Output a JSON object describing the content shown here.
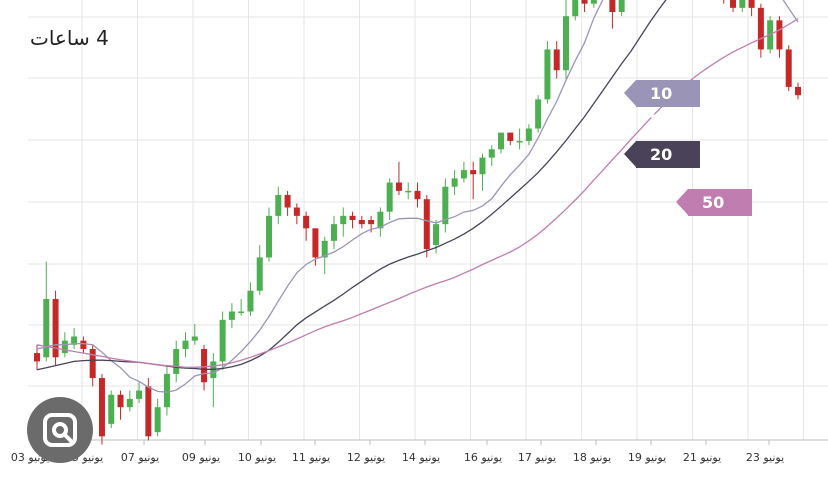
{
  "title": "4 ساعات",
  "chart_data": {
    "type": "candlestick",
    "x_tick_labels": [
      {
        "day": "03",
        "month": "يونيو"
      },
      {
        "day": "05",
        "month": "يونيو"
      },
      {
        "day": "07",
        "month": "يونيو"
      },
      {
        "day": "09",
        "month": "يونيو"
      },
      {
        "day": "10",
        "month": "يونيو"
      },
      {
        "day": "11",
        "month": "يونيو"
      },
      {
        "day": "12",
        "month": "يونيو"
      },
      {
        "day": "14",
        "month": "يونيو"
      },
      {
        "day": "16",
        "month": "يونيو"
      },
      {
        "day": "17",
        "month": "يونيو"
      },
      {
        "day": "18",
        "month": "يونيو"
      },
      {
        "day": "19",
        "month": "يونيو"
      },
      {
        "day": "21",
        "month": "يونيو"
      },
      {
        "day": "23",
        "month": "يونيو"
      }
    ],
    "price_range": [
      0,
      100
    ],
    "grid": true,
    "up_color": "#4caf50",
    "down_color": "#c62828",
    "candles": [
      [
        18,
        16,
        20,
        14
      ],
      [
        17,
        31,
        40,
        16
      ],
      [
        31,
        17,
        33,
        15
      ],
      [
        18,
        21,
        23,
        17
      ],
      [
        20,
        22,
        24,
        19
      ],
      [
        21,
        19,
        22,
        18
      ],
      [
        19,
        12,
        20,
        10
      ],
      [
        12,
        -2,
        13,
        -4
      ],
      [
        1,
        8,
        9,
        0
      ],
      [
        8,
        5,
        9,
        2
      ],
      [
        5,
        7,
        9,
        4
      ],
      [
        7,
        9,
        11,
        6
      ],
      [
        10,
        -2,
        12,
        -3
      ],
      [
        -1,
        5,
        7,
        -2
      ],
      [
        5,
        13,
        15,
        3
      ],
      [
        13,
        19,
        21,
        11
      ],
      [
        19,
        21,
        23,
        17
      ],
      [
        21,
        22,
        25,
        20
      ],
      [
        19,
        11,
        20,
        9
      ],
      [
        12,
        16,
        18,
        5
      ],
      [
        16,
        26,
        28,
        14
      ],
      [
        26,
        28,
        30,
        24
      ],
      [
        28,
        28,
        31,
        27
      ],
      [
        28,
        33,
        35,
        27
      ],
      [
        33,
        41,
        44,
        32
      ],
      [
        41,
        51,
        53,
        40
      ],
      [
        51,
        56,
        58,
        49
      ],
      [
        56,
        53,
        57,
        51
      ],
      [
        53,
        51,
        54,
        49
      ],
      [
        51,
        48,
        52,
        45
      ],
      [
        48,
        41,
        48,
        39
      ],
      [
        41,
        45,
        46,
        37
      ],
      [
        45,
        49,
        51,
        43
      ],
      [
        49,
        51,
        53,
        46
      ],
      [
        51,
        50,
        52,
        48
      ],
      [
        50,
        49,
        51,
        48
      ],
      [
        50,
        49,
        51,
        47
      ],
      [
        48,
        52,
        53,
        46
      ],
      [
        52,
        59,
        60,
        50
      ],
      [
        59,
        57,
        64,
        56
      ],
      [
        57,
        57,
        59,
        55
      ],
      [
        57,
        55,
        59,
        53
      ],
      [
        55,
        43,
        56,
        41
      ],
      [
        44,
        49,
        50,
        42
      ],
      [
        49,
        58,
        60,
        47
      ],
      [
        58,
        60,
        62,
        56
      ],
      [
        60,
        62,
        64,
        59
      ],
      [
        62,
        61,
        64,
        55
      ],
      [
        61,
        65,
        66,
        57
      ],
      [
        65,
        67,
        68,
        63
      ],
      [
        67,
        71,
        71,
        66
      ],
      [
        71,
        69,
        71,
        68
      ],
      [
        69,
        69,
        72,
        67
      ],
      [
        69,
        72,
        73,
        68
      ],
      [
        72,
        79,
        80,
        71
      ],
      [
        79,
        91,
        93,
        78
      ],
      [
        91,
        86,
        93,
        84
      ],
      [
        86,
        99,
        103,
        84
      ],
      [
        99,
        103,
        104,
        98
      ],
      [
        103,
        102,
        104,
        100
      ],
      [
        102,
        108,
        110,
        101
      ],
      [
        108,
        109,
        111,
        106
      ],
      [
        109,
        100,
        111,
        96
      ],
      [
        100,
        114,
        116,
        99
      ],
      [
        114,
        119,
        128,
        112
      ],
      [
        119,
        117,
        121,
        113
      ],
      [
        117,
        115,
        118,
        110
      ],
      [
        115,
        117,
        119,
        113
      ],
      [
        117,
        114,
        118,
        110
      ],
      [
        114,
        115,
        117,
        112
      ],
      [
        115,
        117,
        119,
        112
      ],
      [
        117,
        115,
        118,
        113
      ],
      [
        115,
        116,
        118,
        114
      ],
      [
        116,
        119,
        120,
        113
      ],
      [
        119,
        104,
        120,
        102
      ],
      [
        104,
        101,
        105,
        100
      ],
      [
        101,
        103,
        105,
        100
      ],
      [
        103,
        101,
        104,
        99
      ],
      [
        101,
        91,
        102,
        89
      ],
      [
        91,
        98,
        99,
        90
      ],
      [
        98,
        91,
        99,
        89
      ],
      [
        91,
        82,
        92,
        81
      ],
      [
        82,
        80,
        83,
        79
      ]
    ],
    "series": [
      {
        "name": "10 MA",
        "color": "#9a95b6",
        "values": [
          19,
          19.5,
          20,
          20,
          20.3,
          20.3,
          20,
          18.2,
          16.2,
          14.5,
          12.2,
          11.2,
          9.8,
          8.8,
          8.6,
          9.1,
          10.6,
          12.5,
          13.1,
          13.2,
          14.5,
          16.3,
          18.4,
          20.8,
          23.5,
          26.8,
          30.5,
          34.1,
          37.3,
          39.3,
          40.6,
          41.4,
          42.3,
          43.6,
          45.2,
          46.7,
          47.8,
          48.3,
          49.4,
          50.3,
          50.4,
          50.4,
          49.8,
          49.3,
          50.1,
          50.8,
          51.9,
          52.3,
          53.4,
          55.1,
          58.1,
          60.9,
          63.2,
          65.8,
          69.7,
          74.3,
          78.5,
          83.6,
          88.3,
          92.6,
          98.5,
          103.1,
          106.7,
          109.3,
          111.6,
          113.7,
          114.8,
          115.7,
          116.9,
          117.5,
          116.9,
          116.6,
          116.3,
          116.5,
          114.9,
          113.6,
          112.4,
          110.8,
          108.7,
          106.9,
          104.3,
          100.9,
          97.6
        ]
      },
      {
        "name": "20 MA",
        "color": "#4a4258",
        "values": [
          14,
          14.5,
          15,
          15.5,
          16,
          16.2,
          16.3,
          16.3,
          16.2,
          16,
          15.9,
          15.8,
          15.5,
          15.2,
          14.9,
          14.6,
          14.4,
          14.3,
          14.1,
          14.1,
          14.3,
          14.7,
          15.3,
          16.2,
          17.3,
          18.7,
          20.6,
          22.7,
          24.8,
          26.5,
          27.9,
          29.3,
          30.7,
          32.2,
          33.8,
          35.3,
          36.8,
          38.2,
          39.4,
          40.3,
          41.1,
          41.8,
          42.6,
          43.4,
          44.4,
          45.4,
          46.6,
          48,
          49.6,
          51.4,
          53.3,
          55.3,
          57.3,
          59.3,
          61.4,
          63.8,
          66.4,
          69.1,
          72,
          74.8,
          78,
          81.2,
          84.4,
          87.6,
          90.6,
          94,
          97.4,
          100.6,
          103.6,
          106.6,
          108.7,
          110.9,
          113.1,
          115.3,
          116.7,
          117.8,
          118.2,
          118.3,
          118,
          117.5,
          116.7,
          115.3,
          113.6
        ]
      },
      {
        "name": "50 MA",
        "color": "#c07db0",
        "values": [
          20,
          19.6,
          19.2,
          18.8,
          18.4,
          18,
          17.6,
          17.2,
          16.8,
          16.4,
          16.1,
          15.8,
          15.5,
          15.2,
          15,
          14.8,
          14.6,
          14.6,
          14.7,
          14.9,
          15.2,
          15.7,
          16.3,
          17,
          17.8,
          18.6,
          19.5,
          20.4,
          21.4,
          22.4,
          23.4,
          24.3,
          25.1,
          25.8,
          26.6,
          27.5,
          28.4,
          29.3,
          30.2,
          31.1,
          32.1,
          33,
          33.9,
          34.7,
          35.4,
          36.2,
          37.2,
          38.2,
          39.3,
          40.3,
          41.3,
          42.3,
          43.5,
          45,
          46.6,
          48.5,
          50.5,
          52.6,
          54.8,
          57.1,
          59.6,
          62,
          64.5,
          66.9,
          69.4,
          71.8,
          74.2,
          76.5,
          78.8,
          81,
          82.8,
          84.6,
          86.2,
          87.7,
          89.1,
          90.4,
          91.5,
          92.6,
          93.6,
          94.6,
          95.7,
          97,
          98.4
        ]
      }
    ]
  }
}
